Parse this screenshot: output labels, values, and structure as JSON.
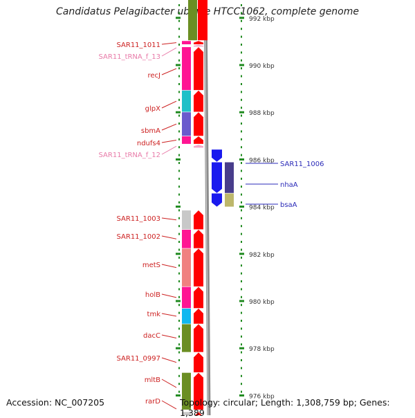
{
  "title": "Candidatus Pelagibacter ubique HTCC1062, complete genome",
  "footer": {
    "accession": "Accession: NC_007205",
    "topology": "Topology: circular; Length: 1,308,759 bp; Genes: 1,389"
  },
  "colors": {
    "gene_label": "#cc1f1f",
    "trna_label": "#e87aa8",
    "reverse_label": "#2a2ab8",
    "forward_arrow": "#ff0000",
    "reverse_arrow": "#1a1aee",
    "tick": "#1f8a1f",
    "backbone": "#8c8c8c"
  },
  "axis": {
    "unit": "kbp",
    "ticks": [
      {
        "value": 992,
        "label": "992 kbp"
      },
      {
        "value": 990,
        "label": "990 kbp"
      },
      {
        "value": 988,
        "label": "988 kbp"
      },
      {
        "value": 986,
        "label": "986 kbp"
      },
      {
        "value": 984,
        "label": "984 kbp"
      },
      {
        "value": 982,
        "label": "982 kbp"
      },
      {
        "value": 980,
        "label": "980 kbp"
      },
      {
        "value": 978,
        "label": "978 kbp"
      },
      {
        "value": 976,
        "label": "976 kbp"
      }
    ]
  },
  "forward_genes": [
    {
      "name": "SAR11_1011",
      "kind": "gene",
      "color": "#ff1493",
      "start": 990.88,
      "end": 991.02
    },
    {
      "name": "SAR11_tRNA_f_13",
      "kind": "trna",
      "color": "#ffffff",
      "start": 990.78,
      "end": 990.86
    },
    {
      "name": "recJ",
      "kind": "gene",
      "color": "#ff1493",
      "start": 988.94,
      "end": 990.76
    },
    {
      "name": "glpX",
      "kind": "gene",
      "color": "#20c0c8",
      "start": 988.02,
      "end": 988.92
    },
    {
      "name": "sbmA",
      "kind": "gene",
      "color": "#6a5acd",
      "start": 987.0,
      "end": 988.0
    },
    {
      "name": "ndufs4",
      "kind": "gene",
      "color": "#ff1493",
      "start": 986.66,
      "end": 986.98
    },
    {
      "name": "SAR11_tRNA_f_12",
      "kind": "trna",
      "color": "#ffffff",
      "start": 986.5,
      "end": 986.62
    },
    {
      "name": "SAR11_1003",
      "kind": "gene",
      "color": "#c8c8c8",
      "start": 983.04,
      "end": 983.84
    },
    {
      "name": "SAR11_1002",
      "kind": "gene",
      "color": "#ff1493",
      "start": 982.24,
      "end": 983.02
    },
    {
      "name": "metS",
      "kind": "gene",
      "color": "#f08080",
      "start": 980.62,
      "end": 982.22
    },
    {
      "name": "holB",
      "kind": "gene",
      "color": "#ff1493",
      "start": 979.7,
      "end": 980.6
    },
    {
      "name": "tmk",
      "kind": "gene",
      "color": "#10b8f0",
      "start": 979.04,
      "end": 979.68
    },
    {
      "name": "dacC",
      "kind": "gene",
      "color": "#6b8e23",
      "start": 977.84,
      "end": 979.02
    },
    {
      "name": "SAR11_0997",
      "kind": "gene",
      "color": "#ffffff",
      "start": 976.98,
      "end": 977.82
    },
    {
      "name": "mltB",
      "kind": "gene",
      "color": "#6b8e23",
      "start": 975.4,
      "end": 976.96
    },
    {
      "name": "rarD",
      "kind": "gene",
      "color": "#c8c8c8",
      "start": 974.8,
      "end": 975.3
    }
  ],
  "reverse_genes": [
    {
      "name": "SAR11_1006",
      "color": "#ffffff",
      "start": 985.9,
      "end": 986.42
    },
    {
      "name": "nhaA",
      "color": "#483d8b",
      "start": 984.58,
      "end": 985.88
    },
    {
      "name": "bsaA",
      "color": "#bdb76b",
      "start": 984.0,
      "end": 984.56
    }
  ],
  "top_block": {
    "color": "#6b8e23",
    "start": 991.05,
    "end": 993.0
  }
}
